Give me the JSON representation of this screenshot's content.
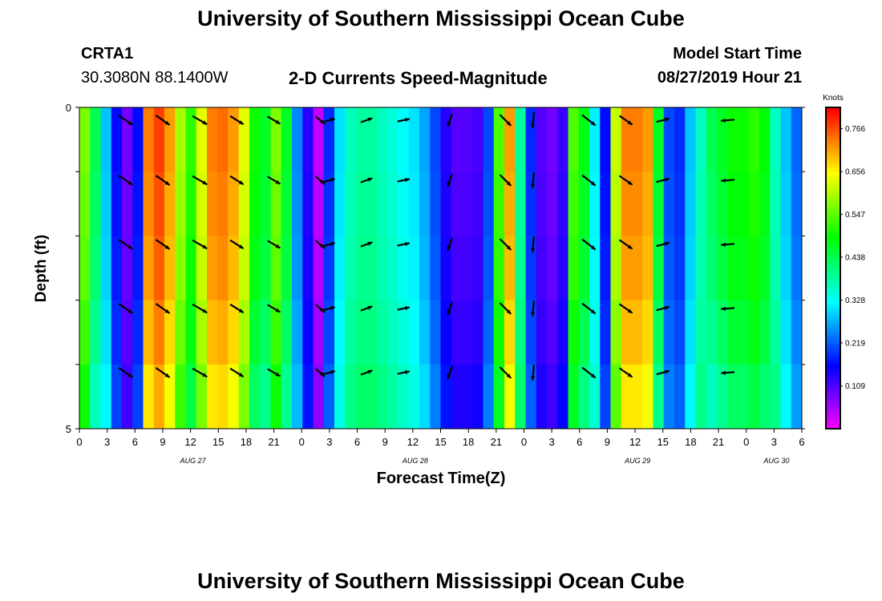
{
  "page": {
    "title_top": "University of Southern Mississippi Ocean Cube",
    "title_bottom": "University of Southern Mississippi Ocean Cube",
    "station_id": "CRTA1",
    "coords": "30.3080N 88.1400W",
    "subtitle": "2-D Currents Speed-Magnitude",
    "model_start_label": "Model Start Time",
    "model_start_value": "08/27/2019 Hour 21"
  },
  "chart_data": {
    "type": "heatmap",
    "title": "2-D Currents Speed-Magnitude",
    "xlabel": "Forecast Time(Z)",
    "ylabel": "Depth (ft)",
    "x_ticks": [
      "0",
      "3",
      "6",
      "9",
      "12",
      "15",
      "18",
      "21",
      "0",
      "3",
      "6",
      "9",
      "12",
      "15",
      "18",
      "21",
      "0",
      "3",
      "6",
      "9",
      "12",
      "15",
      "18",
      "21",
      "0",
      "3",
      "6"
    ],
    "date_labels": [
      {
        "text": "AUG 27",
        "tick_index": 4
      },
      {
        "text": "AUG 28",
        "tick_index": 12
      },
      {
        "text": "AUG 29",
        "tick_index": 20
      },
      {
        "text": "AUG 30",
        "tick_index": 25
      }
    ],
    "y_ticks": [
      "0",
      "5"
    ],
    "ylim": [
      0,
      5
    ],
    "x_range_hours": [
      0,
      78
    ],
    "colorbar": {
      "title": "Knots",
      "tick_labels": [
        "0.766",
        "0.656",
        "0.547",
        "0.438",
        "0.328",
        "0.219",
        "0.109"
      ],
      "tick_values": [
        0.766,
        0.656,
        0.547,
        0.438,
        0.328,
        0.219,
        0.109
      ],
      "range": [
        0,
        0.82
      ]
    },
    "speed_by_hour": [
      0.55,
      0.42,
      0.3,
      0.18,
      0.1,
      0.18,
      0.72,
      0.76,
      0.7,
      0.58,
      0.5,
      0.62,
      0.72,
      0.73,
      0.7,
      0.62,
      0.48,
      0.45,
      0.55,
      0.45,
      0.26,
      0.15,
      0.05,
      0.2,
      0.32,
      0.38,
      0.4,
      0.4,
      0.38,
      0.36,
      0.34,
      0.32,
      0.28,
      0.22,
      0.15,
      0.12,
      0.12,
      0.13,
      0.22,
      0.52,
      0.7,
      0.4,
      0.2,
      0.12,
      0.1,
      0.14,
      0.52,
      0.46,
      0.33,
      0.18,
      0.6,
      0.72,
      0.72,
      0.7,
      0.45,
      0.22,
      0.2,
      0.3,
      0.38,
      0.42,
      0.45,
      0.48,
      0.48,
      0.5,
      0.47,
      0.38,
      0.3,
      0.24,
      0.18
    ],
    "depth_adjust": [
      0.02,
      0.01,
      0.0,
      -0.02,
      -0.05
    ],
    "vectors": [
      {
        "hour": 5,
        "angle": 35,
        "len": 0.75
      },
      {
        "hour": 9,
        "angle": 35,
        "len": 0.75
      },
      {
        "hour": 13,
        "angle": 30,
        "len": 0.75
      },
      {
        "hour": 17,
        "angle": 32,
        "len": 0.7
      },
      {
        "hour": 21,
        "angle": 30,
        "len": 0.65
      },
      {
        "hour": 26,
        "angle": 40,
        "len": 0.55
      },
      {
        "hour": 27,
        "angle": -15,
        "len": 0.5
      },
      {
        "hour": 31,
        "angle": -20,
        "len": 0.55
      },
      {
        "hour": 35,
        "angle": -12,
        "len": 0.55
      },
      {
        "hour": 40,
        "angle": 110,
        "len": 0.6
      },
      {
        "hour": 46,
        "angle": 45,
        "len": 0.7
      },
      {
        "hour": 49,
        "angle": 95,
        "len": 0.7
      },
      {
        "hour": 55,
        "angle": 38,
        "len": 0.75
      },
      {
        "hour": 59,
        "angle": 35,
        "len": 0.7
      },
      {
        "hour": 63,
        "angle": -15,
        "len": 0.6
      },
      {
        "hour": 70,
        "angle": 175,
        "len": 0.6
      }
    ]
  }
}
